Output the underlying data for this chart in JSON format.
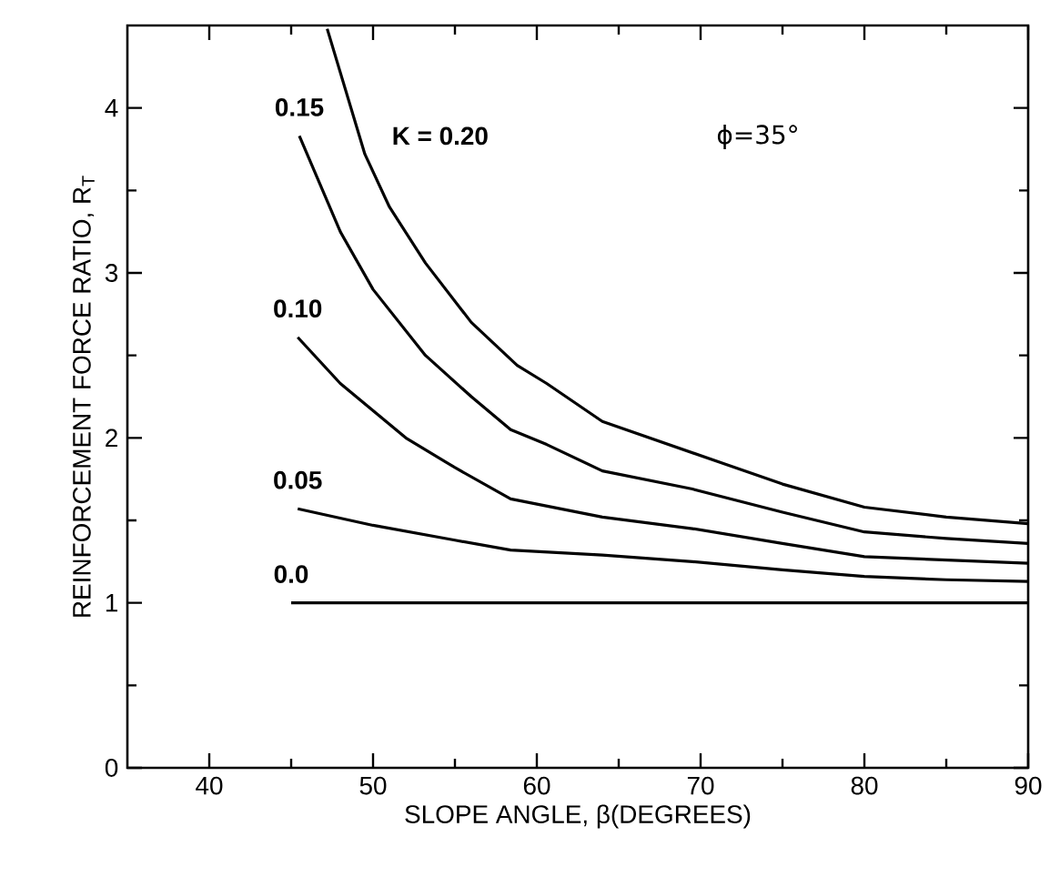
{
  "chart_data": {
    "type": "line",
    "xlabel": "SLOPE ANGLE, β(DEGREES)",
    "ylabel": "REINFORCEMENT FORCE RATIO, R$_{T}$",
    "xlim": [
      35,
      90
    ],
    "ylim": [
      0,
      4.5
    ],
    "xticks": [
      40,
      50,
      60,
      70,
      80,
      90
    ],
    "yticks": [
      0,
      1,
      2,
      3,
      4
    ],
    "grid": false,
    "legend": false,
    "marker": "none",
    "line_style": "solid",
    "annotations": [
      "ϕ=35°"
    ],
    "series": [
      {
        "name": "0.0",
        "color": "#000000",
        "x": [
          45,
          90
        ],
        "values": [
          1,
          1
        ]
      },
      {
        "name": "0.05",
        "color": "#000000",
        "x": [
          45.4,
          50,
          55,
          58.4,
          64,
          69.5,
          75,
          80,
          85,
          90
        ],
        "values": [
          1.57,
          1.47,
          1.38,
          1.32,
          1.29,
          1.25,
          1.2,
          1.16,
          1.14,
          1.13
        ]
      },
      {
        "name": "0.10",
        "color": "#000000",
        "x": [
          45.4,
          48,
          52,
          55,
          58.4,
          64,
          69.5,
          75,
          80,
          85,
          90
        ],
        "values": [
          2.61,
          2.33,
          2.0,
          1.82,
          1.63,
          1.52,
          1.45,
          1.36,
          1.28,
          1.26,
          1.24
        ]
      },
      {
        "name": "0.15",
        "color": "#000000",
        "x": [
          45.5,
          48,
          50,
          53.2,
          56,
          58.4,
          60.6,
          64,
          69.5,
          75,
          80,
          85,
          90
        ],
        "values": [
          3.83,
          3.25,
          2.9,
          2.5,
          2.25,
          2.05,
          1.96,
          1.8,
          1.69,
          1.55,
          1.43,
          1.39,
          1.36
        ]
      },
      {
        "name": "K = 0.20",
        "color": "#000000",
        "x": [
          47.2,
          49.5,
          51,
          53.2,
          56,
          58.8,
          60.6,
          64,
          69.5,
          75,
          80,
          85,
          90
        ],
        "values": [
          4.48,
          3.72,
          3.4,
          3.06,
          2.7,
          2.44,
          2.33,
          2.1,
          1.91,
          1.72,
          1.58,
          1.52,
          1.48
        ]
      }
    ]
  }
}
